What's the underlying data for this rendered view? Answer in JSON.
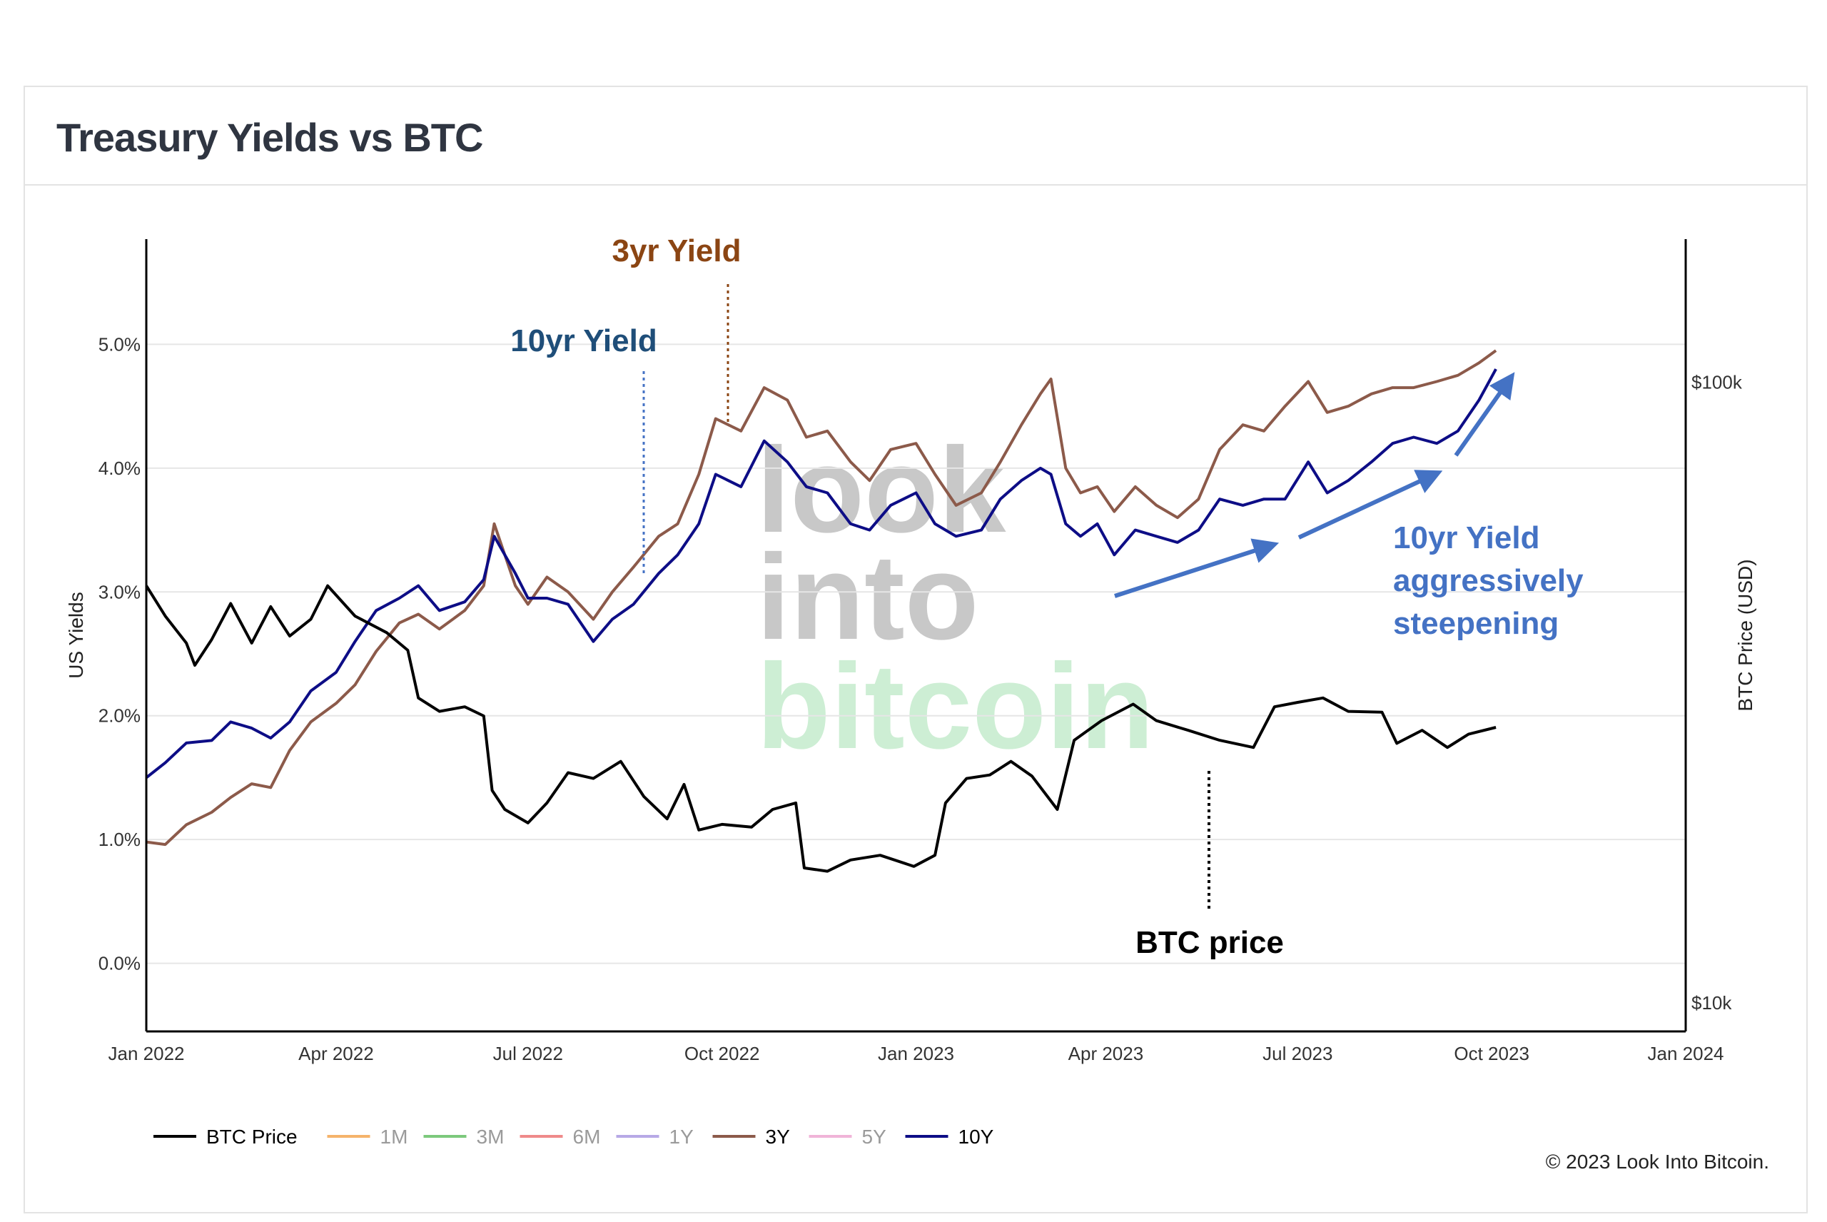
{
  "card": {
    "title": "Treasury Yields vs BTC",
    "copyright": "© 2023 Look Into Bitcoin."
  },
  "watermark": [
    "look",
    "into",
    "bitcoin"
  ],
  "colors": {
    "btc": "#000000",
    "y1m": "#f5b36b",
    "y3m": "#7cc97c",
    "y6m": "#ef8a8a",
    "y1y": "#b7a9e6",
    "y3y": "#8c5a4a",
    "y5y": "#f0b4d8",
    "y10y": "#0d0d86",
    "ann_3yr": "#8b4513",
    "ann_10yr": "#1f4e79",
    "ann_steep": "#4472c4",
    "ann_btc": "#000000",
    "grid": "#e6e6e6",
    "watermark_grey": "#c8c8c8",
    "watermark_green": "#cdeed4"
  },
  "chart_data": {
    "type": "line",
    "x_axis": {
      "ticks": [
        "Jan 2022",
        "Apr 2022",
        "Jul 2022",
        "Oct 2022",
        "Jan 2023",
        "Apr 2023",
        "Jul 2023",
        "Oct 2023",
        "Jan 2024"
      ],
      "range": [
        "2022-01-01",
        "2024-01-01"
      ]
    },
    "y_left": {
      "label": "US Yields",
      "ticks": [
        "5.0%",
        "4.0%",
        "3.0%",
        "2.0%",
        "1.0%",
        "0.0%"
      ],
      "range": [
        -0.55,
        5.85
      ]
    },
    "y_right": {
      "label": "BTC Price (USD)",
      "scale": "log",
      "ticks": [
        "$100k",
        "$10k"
      ],
      "range_usd": [
        9000,
        170000
      ]
    },
    "grid": true,
    "legend": {
      "position": "bottom-left",
      "entries": [
        {
          "name": "BTC Price",
          "key": "btc",
          "active": true
        },
        {
          "name": "1M",
          "key": "y1m",
          "active": false
        },
        {
          "name": "3M",
          "key": "y3m",
          "active": false
        },
        {
          "name": "6M",
          "key": "y6m",
          "active": false
        },
        {
          "name": "1Y",
          "key": "y1y",
          "active": false
        },
        {
          "name": "3Y",
          "key": "y3y",
          "active": true
        },
        {
          "name": "5Y",
          "key": "y5y",
          "active": false
        },
        {
          "name": "10Y",
          "key": "y10y",
          "active": true
        }
      ]
    },
    "series": [
      {
        "name": "3Y",
        "key": "y3y",
        "axis": "left",
        "points": [
          [
            "2022-01-01",
            0.98
          ],
          [
            "2022-01-10",
            0.96
          ],
          [
            "2022-01-20",
            1.12
          ],
          [
            "2022-02-01",
            1.22
          ],
          [
            "2022-02-10",
            1.34
          ],
          [
            "2022-02-20",
            1.45
          ],
          [
            "2022-03-01",
            1.42
          ],
          [
            "2022-03-10",
            1.72
          ],
          [
            "2022-03-20",
            1.95
          ],
          [
            "2022-04-01",
            2.1
          ],
          [
            "2022-04-10",
            2.25
          ],
          [
            "2022-04-20",
            2.52
          ],
          [
            "2022-05-01",
            2.75
          ],
          [
            "2022-05-10",
            2.82
          ],
          [
            "2022-05-20",
            2.7
          ],
          [
            "2022-06-01",
            2.85
          ],
          [
            "2022-06-10",
            3.05
          ],
          [
            "2022-06-15",
            3.55
          ],
          [
            "2022-06-25",
            3.05
          ],
          [
            "2022-07-01",
            2.9
          ],
          [
            "2022-07-10",
            3.12
          ],
          [
            "2022-07-20",
            3.0
          ],
          [
            "2022-08-01",
            2.78
          ],
          [
            "2022-08-10",
            3.0
          ],
          [
            "2022-08-20",
            3.2
          ],
          [
            "2022-09-01",
            3.45
          ],
          [
            "2022-09-10",
            3.55
          ],
          [
            "2022-09-20",
            3.95
          ],
          [
            "2022-09-28",
            4.4
          ],
          [
            "2022-10-10",
            4.3
          ],
          [
            "2022-10-21",
            4.65
          ],
          [
            "2022-11-01",
            4.55
          ],
          [
            "2022-11-10",
            4.25
          ],
          [
            "2022-11-20",
            4.3
          ],
          [
            "2022-12-01",
            4.05
          ],
          [
            "2022-12-10",
            3.9
          ],
          [
            "2022-12-20",
            4.15
          ],
          [
            "2023-01-01",
            4.2
          ],
          [
            "2023-01-10",
            3.95
          ],
          [
            "2023-01-20",
            3.7
          ],
          [
            "2023-02-01",
            3.8
          ],
          [
            "2023-02-10",
            4.05
          ],
          [
            "2023-02-20",
            4.35
          ],
          [
            "2023-03-01",
            4.6
          ],
          [
            "2023-03-06",
            4.72
          ],
          [
            "2023-03-13",
            4.0
          ],
          [
            "2023-03-20",
            3.8
          ],
          [
            "2023-03-28",
            3.85
          ],
          [
            "2023-04-05",
            3.65
          ],
          [
            "2023-04-15",
            3.85
          ],
          [
            "2023-04-25",
            3.7
          ],
          [
            "2023-05-05",
            3.6
          ],
          [
            "2023-05-15",
            3.75
          ],
          [
            "2023-05-25",
            4.15
          ],
          [
            "2023-06-05",
            4.35
          ],
          [
            "2023-06-15",
            4.3
          ],
          [
            "2023-06-25",
            4.5
          ],
          [
            "2023-07-06",
            4.7
          ],
          [
            "2023-07-15",
            4.45
          ],
          [
            "2023-07-25",
            4.5
          ],
          [
            "2023-08-05",
            4.6
          ],
          [
            "2023-08-15",
            4.65
          ],
          [
            "2023-08-25",
            4.65
          ],
          [
            "2023-09-05",
            4.7
          ],
          [
            "2023-09-15",
            4.75
          ],
          [
            "2023-09-25",
            4.85
          ],
          [
            "2023-10-03",
            4.95
          ]
        ]
      },
      {
        "name": "10Y",
        "key": "y10y",
        "axis": "left",
        "points": [
          [
            "2022-01-01",
            1.5
          ],
          [
            "2022-01-10",
            1.62
          ],
          [
            "2022-01-20",
            1.78
          ],
          [
            "2022-02-01",
            1.8
          ],
          [
            "2022-02-10",
            1.95
          ],
          [
            "2022-02-20",
            1.9
          ],
          [
            "2022-03-01",
            1.82
          ],
          [
            "2022-03-10",
            1.95
          ],
          [
            "2022-03-20",
            2.2
          ],
          [
            "2022-04-01",
            2.35
          ],
          [
            "2022-04-10",
            2.6
          ],
          [
            "2022-04-20",
            2.85
          ],
          [
            "2022-05-01",
            2.95
          ],
          [
            "2022-05-10",
            3.05
          ],
          [
            "2022-05-20",
            2.85
          ],
          [
            "2022-06-01",
            2.92
          ],
          [
            "2022-06-10",
            3.1
          ],
          [
            "2022-06-15",
            3.45
          ],
          [
            "2022-06-25",
            3.15
          ],
          [
            "2022-07-01",
            2.95
          ],
          [
            "2022-07-10",
            2.95
          ],
          [
            "2022-07-20",
            2.9
          ],
          [
            "2022-08-01",
            2.6
          ],
          [
            "2022-08-10",
            2.78
          ],
          [
            "2022-08-20",
            2.9
          ],
          [
            "2022-09-01",
            3.15
          ],
          [
            "2022-09-10",
            3.3
          ],
          [
            "2022-09-20",
            3.55
          ],
          [
            "2022-09-28",
            3.95
          ],
          [
            "2022-10-10",
            3.85
          ],
          [
            "2022-10-21",
            4.22
          ],
          [
            "2022-11-01",
            4.05
          ],
          [
            "2022-11-10",
            3.85
          ],
          [
            "2022-11-20",
            3.8
          ],
          [
            "2022-12-01",
            3.55
          ],
          [
            "2022-12-10",
            3.5
          ],
          [
            "2022-12-20",
            3.7
          ],
          [
            "2023-01-01",
            3.8
          ],
          [
            "2023-01-10",
            3.55
          ],
          [
            "2023-01-20",
            3.45
          ],
          [
            "2023-02-01",
            3.5
          ],
          [
            "2023-02-10",
            3.75
          ],
          [
            "2023-02-20",
            3.9
          ],
          [
            "2023-03-01",
            4.0
          ],
          [
            "2023-03-06",
            3.95
          ],
          [
            "2023-03-13",
            3.55
          ],
          [
            "2023-03-20",
            3.45
          ],
          [
            "2023-03-28",
            3.55
          ],
          [
            "2023-04-05",
            3.3
          ],
          [
            "2023-04-15",
            3.5
          ],
          [
            "2023-04-25",
            3.45
          ],
          [
            "2023-05-05",
            3.4
          ],
          [
            "2023-05-15",
            3.5
          ],
          [
            "2023-05-25",
            3.75
          ],
          [
            "2023-06-05",
            3.7
          ],
          [
            "2023-06-15",
            3.75
          ],
          [
            "2023-06-25",
            3.75
          ],
          [
            "2023-07-06",
            4.05
          ],
          [
            "2023-07-15",
            3.8
          ],
          [
            "2023-07-25",
            3.9
          ],
          [
            "2023-08-05",
            4.05
          ],
          [
            "2023-08-15",
            4.2
          ],
          [
            "2023-08-25",
            4.25
          ],
          [
            "2023-09-05",
            4.2
          ],
          [
            "2023-09-15",
            4.3
          ],
          [
            "2023-09-25",
            4.55
          ],
          [
            "2023-10-03",
            4.8
          ]
        ]
      },
      {
        "name": "BTC Price",
        "key": "btc",
        "axis": "right",
        "points": [
          [
            "2022-01-01",
            47000
          ],
          [
            "2022-01-10",
            42000
          ],
          [
            "2022-01-20",
            38000
          ],
          [
            "2022-01-24",
            35000
          ],
          [
            "2022-02-01",
            38500
          ],
          [
            "2022-02-10",
            44000
          ],
          [
            "2022-02-20",
            38000
          ],
          [
            "2022-03-01",
            43500
          ],
          [
            "2022-03-10",
            39000
          ],
          [
            "2022-03-20",
            41500
          ],
          [
            "2022-03-28",
            47000
          ],
          [
            "2022-04-10",
            42000
          ],
          [
            "2022-04-25",
            39500
          ],
          [
            "2022-05-05",
            37000
          ],
          [
            "2022-05-10",
            31000
          ],
          [
            "2022-05-20",
            29500
          ],
          [
            "2022-06-01",
            30000
          ],
          [
            "2022-06-10",
            29000
          ],
          [
            "2022-06-14",
            22000
          ],
          [
            "2022-06-20",
            20500
          ],
          [
            "2022-07-01",
            19500
          ],
          [
            "2022-07-10",
            21000
          ],
          [
            "2022-07-20",
            23500
          ],
          [
            "2022-08-01",
            23000
          ],
          [
            "2022-08-14",
            24500
          ],
          [
            "2022-08-25",
            21500
          ],
          [
            "2022-09-05",
            19800
          ],
          [
            "2022-09-13",
            22500
          ],
          [
            "2022-09-20",
            19000
          ],
          [
            "2022-10-01",
            19400
          ],
          [
            "2022-10-15",
            19200
          ],
          [
            "2022-10-25",
            20500
          ],
          [
            "2022-11-05",
            21000
          ],
          [
            "2022-11-09",
            16500
          ],
          [
            "2022-11-20",
            16300
          ],
          [
            "2022-12-01",
            17000
          ],
          [
            "2022-12-15",
            17300
          ],
          [
            "2022-12-31",
            16600
          ],
          [
            "2023-01-10",
            17300
          ],
          [
            "2023-01-15",
            21000
          ],
          [
            "2023-01-25",
            23000
          ],
          [
            "2023-02-05",
            23300
          ],
          [
            "2023-02-15",
            24500
          ],
          [
            "2023-02-25",
            23200
          ],
          [
            "2023-03-09",
            20500
          ],
          [
            "2023-03-17",
            26500
          ],
          [
            "2023-03-30",
            28500
          ],
          [
            "2023-04-14",
            30300
          ],
          [
            "2023-04-25",
            28500
          ],
          [
            "2023-05-10",
            27500
          ],
          [
            "2023-05-25",
            26500
          ],
          [
            "2023-06-10",
            25800
          ],
          [
            "2023-06-20",
            30000
          ],
          [
            "2023-07-01",
            30500
          ],
          [
            "2023-07-13",
            31000
          ],
          [
            "2023-07-25",
            29500
          ],
          [
            "2023-08-10",
            29400
          ],
          [
            "2023-08-17",
            26200
          ],
          [
            "2023-08-29",
            27500
          ],
          [
            "2023-09-10",
            25800
          ],
          [
            "2023-09-20",
            27100
          ],
          [
            "2023-10-03",
            27800
          ]
        ]
      }
    ],
    "annotations": [
      {
        "text": "3yr Yield",
        "key": "ann_3yr"
      },
      {
        "text": "10yr Yield",
        "key": "ann_10yr"
      },
      {
        "text": "10yr Yield",
        "key": "ann_steep"
      },
      {
        "text": "aggressively",
        "key": "ann_steep"
      },
      {
        "text": "steepening",
        "key": "ann_steep"
      },
      {
        "text": "BTC price",
        "key": "ann_btc"
      }
    ]
  }
}
